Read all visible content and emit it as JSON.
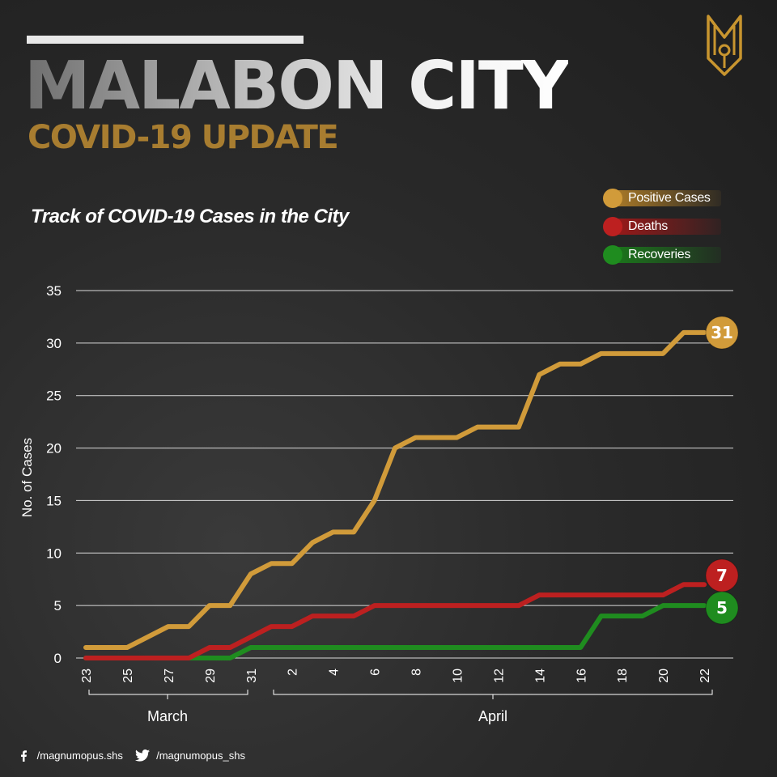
{
  "header": {
    "title": "MALABON CITY",
    "subtitle": "COVID-19 UPDATE"
  },
  "colors": {
    "positive": "#d19b3a",
    "deaths": "#bd2020",
    "recoveries": "#1f8c1f",
    "grid": "#d9d9d9"
  },
  "footer": {
    "facebook_icon": "facebook-icon",
    "facebook_handle": "/magnumopus.shs",
    "twitter_icon": "twitter-icon",
    "twitter_handle": "/magnumopus_shs"
  },
  "chart_data": {
    "type": "line",
    "title": "Track of COVID-19 Cases in the City",
    "ylabel": "No. of Cases",
    "ylim": [
      0,
      35
    ],
    "yticks": [
      0,
      5,
      10,
      15,
      20,
      25,
      30,
      35
    ],
    "grid": true,
    "legend_position": "top-right",
    "x": [
      "Mar 23",
      "Mar 24",
      "Mar 25",
      "Mar 26",
      "Mar 27",
      "Mar 28",
      "Mar 29",
      "Mar 30",
      "Mar 31",
      "Apr 1",
      "Apr 2",
      "Apr 3",
      "Apr 4",
      "Apr 5",
      "Apr 6",
      "Apr 7",
      "Apr 8",
      "Apr 9",
      "Apr 10",
      "Apr 11",
      "Apr 12",
      "Apr 13",
      "Apr 14",
      "Apr 15",
      "Apr 16",
      "Apr 17",
      "Apr 18",
      "Apr 19",
      "Apr 20",
      "Apr 21",
      "Apr 22"
    ],
    "xtick_labels": [
      "23",
      "25",
      "27",
      "29",
      "31",
      "2",
      "4",
      "6",
      "8",
      "10",
      "12",
      "14",
      "16",
      "18",
      "20",
      "22"
    ],
    "month_groups": [
      {
        "label": "March"
      },
      {
        "label": "April"
      }
    ],
    "series": [
      {
        "name": "Positive Cases",
        "color": "#d19b3a",
        "end_label": "31",
        "values": [
          1,
          1,
          1,
          2,
          3,
          3,
          5,
          5,
          8,
          9,
          9,
          11,
          12,
          12,
          15,
          20,
          21,
          21,
          21,
          22,
          22,
          22,
          27,
          28,
          28,
          29,
          29,
          29,
          29,
          31,
          31
        ]
      },
      {
        "name": "Deaths",
        "color": "#bd2020",
        "end_label": "7",
        "values": [
          0,
          0,
          0,
          0,
          0,
          0,
          1,
          1,
          2,
          3,
          3,
          4,
          4,
          4,
          5,
          5,
          5,
          5,
          5,
          5,
          5,
          5,
          6,
          6,
          6,
          6,
          6,
          6,
          6,
          7,
          7
        ]
      },
      {
        "name": "Recoveries",
        "color": "#1f8c1f",
        "end_label": "5",
        "values": [
          0,
          0,
          0,
          0,
          0,
          0,
          0,
          0,
          1,
          1,
          1,
          1,
          1,
          1,
          1,
          1,
          1,
          1,
          1,
          1,
          1,
          1,
          1,
          1,
          1,
          4,
          4,
          4,
          5,
          5,
          5
        ]
      }
    ]
  }
}
